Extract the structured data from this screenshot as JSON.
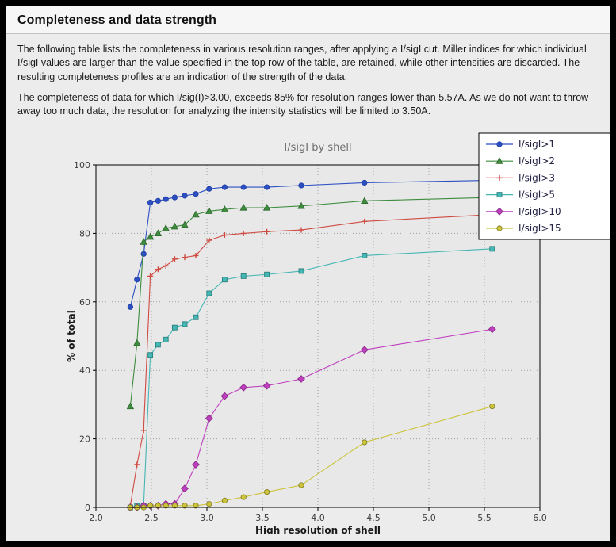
{
  "header": {
    "title": "Completeness and data strength"
  },
  "paragraphs": {
    "p1": "The following table lists the completeness in various resolution ranges, after applying a I/sigI cut. Miller indices for which individual I/sigI values are larger than the value specified in the top row of the table, are retained, while other intensities are discarded. The resulting completeness profiles are an indication of the strength of the data.",
    "p2": "The completeness of data for which I/sig(I)>3.00, exceeds  85% for resolution ranges lower than 5.57A. As we do not want to throw away too much data, the resolution for analyzing the intensity statistics will be limited to 3.50A."
  },
  "chart_data": {
    "type": "line",
    "title": "I/sigI by shell",
    "xlabel": "High resolution of shell",
    "ylabel": "% of total",
    "xlim": [
      2.0,
      6.0
    ],
    "ylim": [
      0,
      100
    ],
    "x_ticks": [
      2.0,
      2.5,
      3.0,
      3.5,
      4.0,
      4.5,
      5.0,
      5.5,
      6.0
    ],
    "y_ticks": [
      0,
      20,
      40,
      60,
      80,
      100
    ],
    "grid": true,
    "legend_position": "top-right",
    "x": [
      2.31,
      2.37,
      2.43,
      2.49,
      2.56,
      2.63,
      2.71,
      2.8,
      2.9,
      3.02,
      3.16,
      3.33,
      3.54,
      3.85,
      4.42,
      5.57
    ],
    "series": [
      {
        "name": "I/sigI>1",
        "color": "#2c4fc4",
        "edge": "#1d3a9e",
        "marker": "circle",
        "values": [
          58.5,
          66.5,
          74,
          89,
          89.5,
          90,
          90.5,
          91,
          91.5,
          93,
          93.5,
          93.5,
          93.5,
          94,
          94.8,
          95.5
        ]
      },
      {
        "name": "I/sigI>2",
        "color": "#3e8c3e",
        "edge": "#2c672c",
        "marker": "triangle",
        "values": [
          29.5,
          48,
          77.5,
          79,
          80,
          81.5,
          82,
          82.5,
          85.5,
          86.5,
          87,
          87.5,
          87.5,
          88,
          89.5,
          90.5
        ]
      },
      {
        "name": "I/sigI>3",
        "color": "#cf4a41",
        "edge": "#a33730",
        "marker": "plus",
        "values": [
          0.5,
          12.5,
          22.5,
          67.5,
          69.5,
          70.5,
          72.5,
          73,
          73.5,
          78,
          79.5,
          80,
          80.5,
          81,
          83.5,
          85.5
        ]
      },
      {
        "name": "I/sigI>5",
        "color": "#45b7b4",
        "edge": "#2d807e",
        "marker": "square",
        "values": [
          0,
          0.5,
          0.5,
          44.5,
          47.5,
          49,
          52.5,
          53.5,
          55.5,
          62.5,
          66.5,
          67.5,
          68,
          69,
          73.5,
          75.5
        ]
      },
      {
        "name": "I/sigI>10",
        "color": "#bf3fbf",
        "edge": "#8a2d8a",
        "marker": "diamond",
        "values": [
          0,
          0,
          0.5,
          0.5,
          0.5,
          1,
          1,
          5.5,
          12.5,
          26,
          32.5,
          35,
          35.5,
          37.5,
          46,
          52
        ]
      },
      {
        "name": "I/sigI>15",
        "color": "#cdc43c",
        "edge": "#7d7a22",
        "marker": "circle",
        "values": [
          0,
          0,
          0,
          0.5,
          0.5,
          0.5,
          0.5,
          0.5,
          0.5,
          1,
          2,
          3,
          4.5,
          6.5,
          19,
          29.5
        ]
      }
    ],
    "palette": {
      "page_bg": "#ececec",
      "plot_bg": "#e8e8e8",
      "grid": "#9f9f9f",
      "tick_text": "#3c3c3c",
      "title_text": "#6e6e6e",
      "axis_label_text": "#1a1a1a",
      "legend_text": "#222244",
      "legend_bg": "#ffffff",
      "legend_border": "#000000",
      "axis_border": "#000000"
    }
  }
}
